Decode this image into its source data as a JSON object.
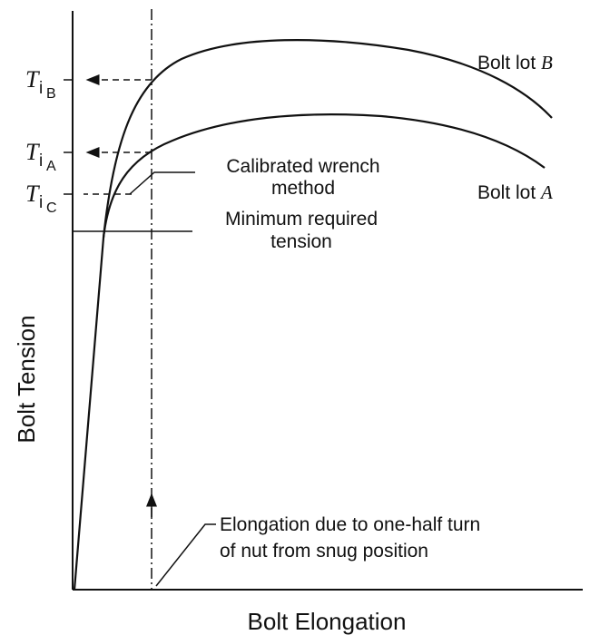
{
  "axes": {
    "y_label": "Bolt Tension",
    "x_label": "Bolt Elongation"
  },
  "tension_levels": [
    {
      "symbol": "T",
      "sub": "i",
      "subsub": "B"
    },
    {
      "symbol": "T",
      "sub": "i",
      "subsub": "A"
    },
    {
      "symbol": "T",
      "sub": "i",
      "subsub": "C"
    }
  ],
  "curves": [
    {
      "text": "Bolt lot",
      "letter": "B"
    },
    {
      "text": "Bolt lot",
      "letter": "A"
    }
  ],
  "annotations": {
    "calibrated": [
      "Calibrated wrench",
      "method"
    ],
    "minimum": [
      "Minimum required",
      "tension"
    ],
    "elongation": [
      "Elongation due to one-half turn",
      "of nut from snug position"
    ]
  }
}
